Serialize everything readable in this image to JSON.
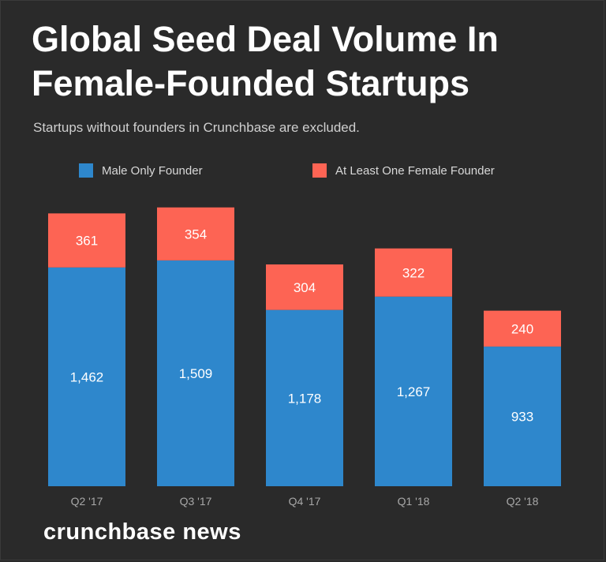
{
  "chart_data": {
    "type": "bar",
    "stacked": true,
    "title_lines": [
      "Global Seed Deal Volume In",
      "Female-Founded Startups"
    ],
    "subtitle": "Startups without founders in Crunchbase are excluded.",
    "categories": [
      "Q2 '17",
      "Q3 '17",
      "Q4 '17",
      "Q1 '18",
      "Q2 '18"
    ],
    "series": [
      {
        "name": "Male Only Founder",
        "color": "#2e87cc",
        "values": [
          1462,
          1509,
          1178,
          1267,
          933
        ],
        "labels": [
          "1,462",
          "1,509",
          "1,178",
          "1,267",
          "933"
        ]
      },
      {
        "name": "At Least One Female Founder",
        "color": "#fd6454",
        "values": [
          361,
          354,
          304,
          322,
          240
        ],
        "labels": [
          "361",
          "354",
          "304",
          "322",
          "240"
        ]
      }
    ],
    "ylim": [
      0,
      2000
    ],
    "grid": false,
    "legend": "top-left"
  },
  "brand": "crunchbase news"
}
